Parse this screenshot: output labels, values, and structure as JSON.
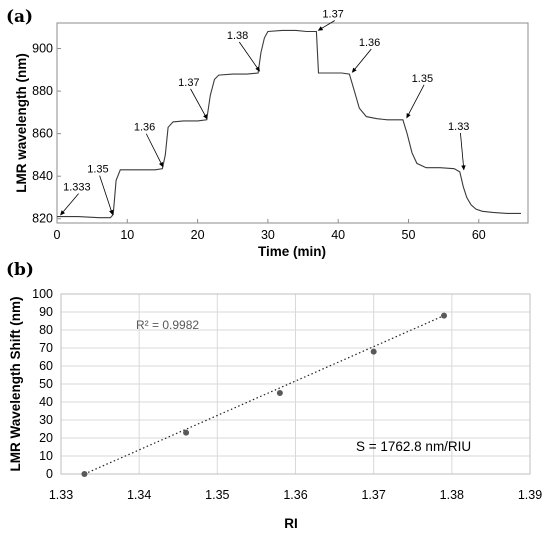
{
  "chart_data": [
    {
      "panel_label": "(a)",
      "type": "line",
      "xlabel": "Time (min)",
      "ylabel": "LMR wavelength (nm)",
      "xlim": [
        0,
        67
      ],
      "ylim": [
        818,
        912
      ],
      "xticks": [
        "0",
        "10",
        "20",
        "30",
        "40",
        "50",
        "60"
      ],
      "yticks": [
        "820",
        "840",
        "860",
        "880",
        "900"
      ],
      "grid": false,
      "series": [
        {
          "x": [
            0,
            3,
            6,
            7.6,
            8.0,
            8.4,
            9.0,
            10.5,
            12,
            14,
            15.0,
            15.4,
            15.8,
            16.5,
            18,
            20,
            21.3,
            21.8,
            22.4,
            23,
            25,
            27,
            28.6,
            29.0,
            29.5,
            30,
            32,
            34,
            35.5,
            36.9,
            37.2,
            39,
            40.5,
            41.6,
            42.3,
            43,
            44,
            45.5,
            47,
            49.2,
            49.8,
            50.5,
            51.2,
            52.5,
            54.5,
            56.5,
            57.3,
            57.8,
            58.3,
            58.9,
            59.6,
            60.5,
            62,
            64,
            66
          ],
          "y": [
            821,
            821,
            820.5,
            820.5,
            822,
            838,
            843,
            843,
            843,
            843,
            843.5,
            850,
            863,
            865.5,
            866,
            866,
            866.5,
            878,
            885.5,
            887.5,
            888,
            888,
            888.5,
            898,
            905,
            908,
            908.5,
            908.5,
            908,
            908,
            888.5,
            888.5,
            888.5,
            888,
            880,
            872,
            868,
            867,
            866.5,
            866.5,
            860,
            851,
            846,
            844,
            844,
            843.5,
            842,
            835,
            830,
            826.5,
            824.5,
            823.5,
            823,
            822.5,
            822.5
          ]
        }
      ],
      "annotations": [
        {
          "text": "1.333",
          "x": 0.3,
          "y": 821
        },
        {
          "text": "1.35",
          "x": 8.0,
          "y": 821
        },
        {
          "text": "1.36",
          "x": 15.2,
          "y": 843.5
        },
        {
          "text": "1.37",
          "x": 21.5,
          "y": 866
        },
        {
          "text": "1.38",
          "x": 29.0,
          "y": 888.5
        },
        {
          "text": "1.37",
          "x": 36.9,
          "y": 908
        },
        {
          "text": "1.36",
          "x": 41.8,
          "y": 888
        },
        {
          "text": "1.35",
          "x": 49.6,
          "y": 866.5
        },
        {
          "text": "1.33",
          "x": 57.9,
          "y": 842
        }
      ]
    },
    {
      "panel_label": "(b)",
      "type": "scatter",
      "xlabel": "RI",
      "ylabel": "LMR Wavelength Shift (nm)",
      "xlim": [
        1.33,
        1.39
      ],
      "ylim": [
        0,
        100
      ],
      "xticks": [
        "1.33",
        "1.34",
        "1.35",
        "1.36",
        "1.37",
        "1.38",
        "1.39"
      ],
      "yticks": [
        "0",
        "10",
        "20",
        "30",
        "40",
        "50",
        "60",
        "70",
        "80",
        "90",
        "100"
      ],
      "grid": true,
      "series": [
        {
          "x": [
            1.333,
            1.346,
            1.358,
            1.37,
            1.379
          ],
          "y": [
            0,
            23,
            45,
            68,
            88
          ]
        }
      ],
      "trendline": {
        "style": "dotted",
        "x": [
          1.333,
          1.379
        ],
        "y": [
          0,
          88
        ]
      },
      "r_squared_label": "R² = 0.9982",
      "sensitivity_label": "S = 1762.8 nm/RIU"
    }
  ]
}
